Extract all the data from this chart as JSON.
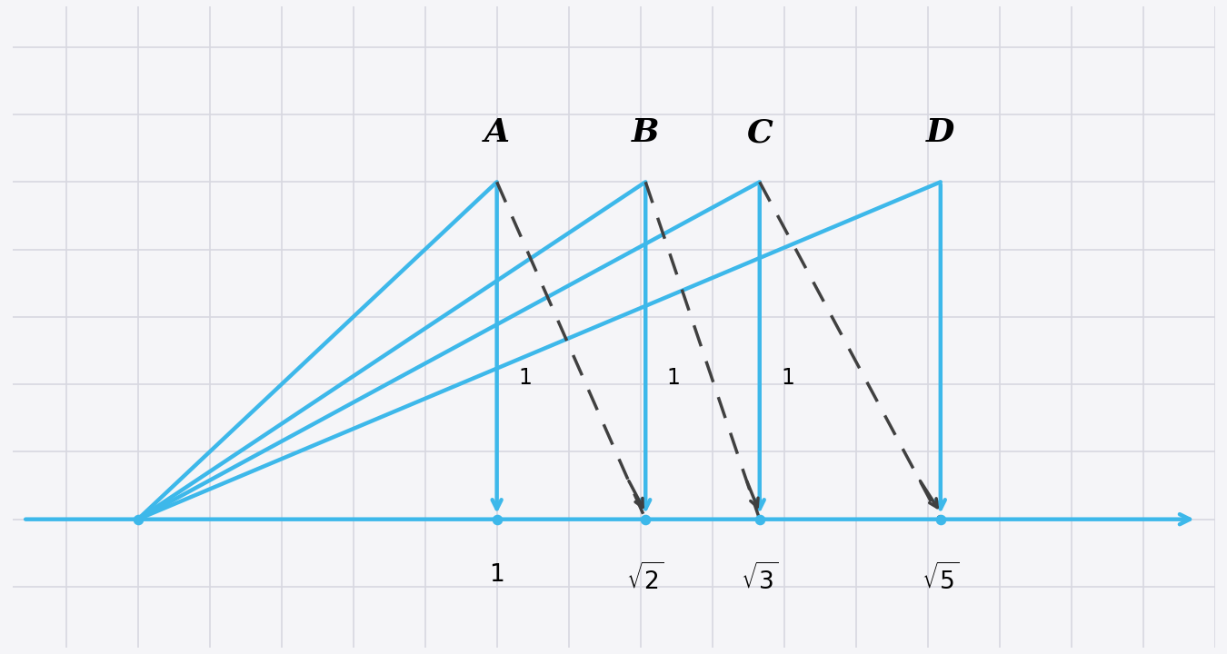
{
  "background_color": "#f5f5f8",
  "grid_color": "#d8d8e0",
  "blue_color": "#3db8ea",
  "dashed_color": "#404040",
  "sqrt2": 1.4142135623730951,
  "sqrt3": 1.7320508075688772,
  "sqrt5": 2.23606797749979,
  "label_1": "1",
  "label_sqrt2": "$\\sqrt{2}$",
  "label_sqrt3": "$\\sqrt{3}$",
  "label_sqrt5": "$\\sqrt{5}$",
  "label_A": "A",
  "label_B": "B",
  "label_C": "C",
  "label_D": "D",
  "figsize": [
    13.5,
    7.2
  ],
  "dpi": 100
}
